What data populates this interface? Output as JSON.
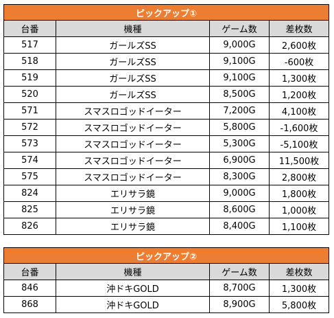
{
  "columns": [
    "台番",
    "機種",
    "ゲーム数",
    "差枚数"
  ],
  "tables": [
    {
      "title": "ピックアップ①",
      "rows": [
        [
          "517",
          "ガールズSS",
          "9,000G",
          "2,600枚"
        ],
        [
          "518",
          "ガールズSS",
          "9,100G",
          "-600枚"
        ],
        [
          "519",
          "ガールズSS",
          "9,100G",
          "1,300枚"
        ],
        [
          "520",
          "ガールズSS",
          "8,500G",
          "1,200枚"
        ],
        [
          "571",
          "スマスロゴッドイーター",
          "7,200G",
          "4,100枚"
        ],
        [
          "572",
          "スマスロゴッドイーター",
          "5,800G",
          "-1,600枚"
        ],
        [
          "573",
          "スマスロゴッドイーター",
          "5,300G",
          "-5,100枚"
        ],
        [
          "574",
          "スマスロゴッドイーター",
          "6,900G",
          "11,500枚"
        ],
        [
          "575",
          "スマスロゴッドイーター",
          "8,300G",
          "2,800枚"
        ],
        [
          "824",
          "エリサラ鏡",
          "9,000G",
          "1,800枚"
        ],
        [
          "825",
          "エリサラ鏡",
          "8,600G",
          "1,000枚"
        ],
        [
          "826",
          "エリサラ鏡",
          "8,400G",
          "1,100枚"
        ]
      ]
    },
    {
      "title": "ピックアップ②",
      "rows": [
        [
          "846",
          "沖ドキGOLD",
          "8,700G",
          "1,300枚"
        ],
        [
          "868",
          "沖ドキGOLD",
          "8,900G",
          "5,800枚"
        ]
      ]
    }
  ],
  "colors": {
    "title_background": "#ed7d31",
    "title_text": "#ffffff",
    "header_background": "#d9d9d9",
    "border": "#000000"
  }
}
